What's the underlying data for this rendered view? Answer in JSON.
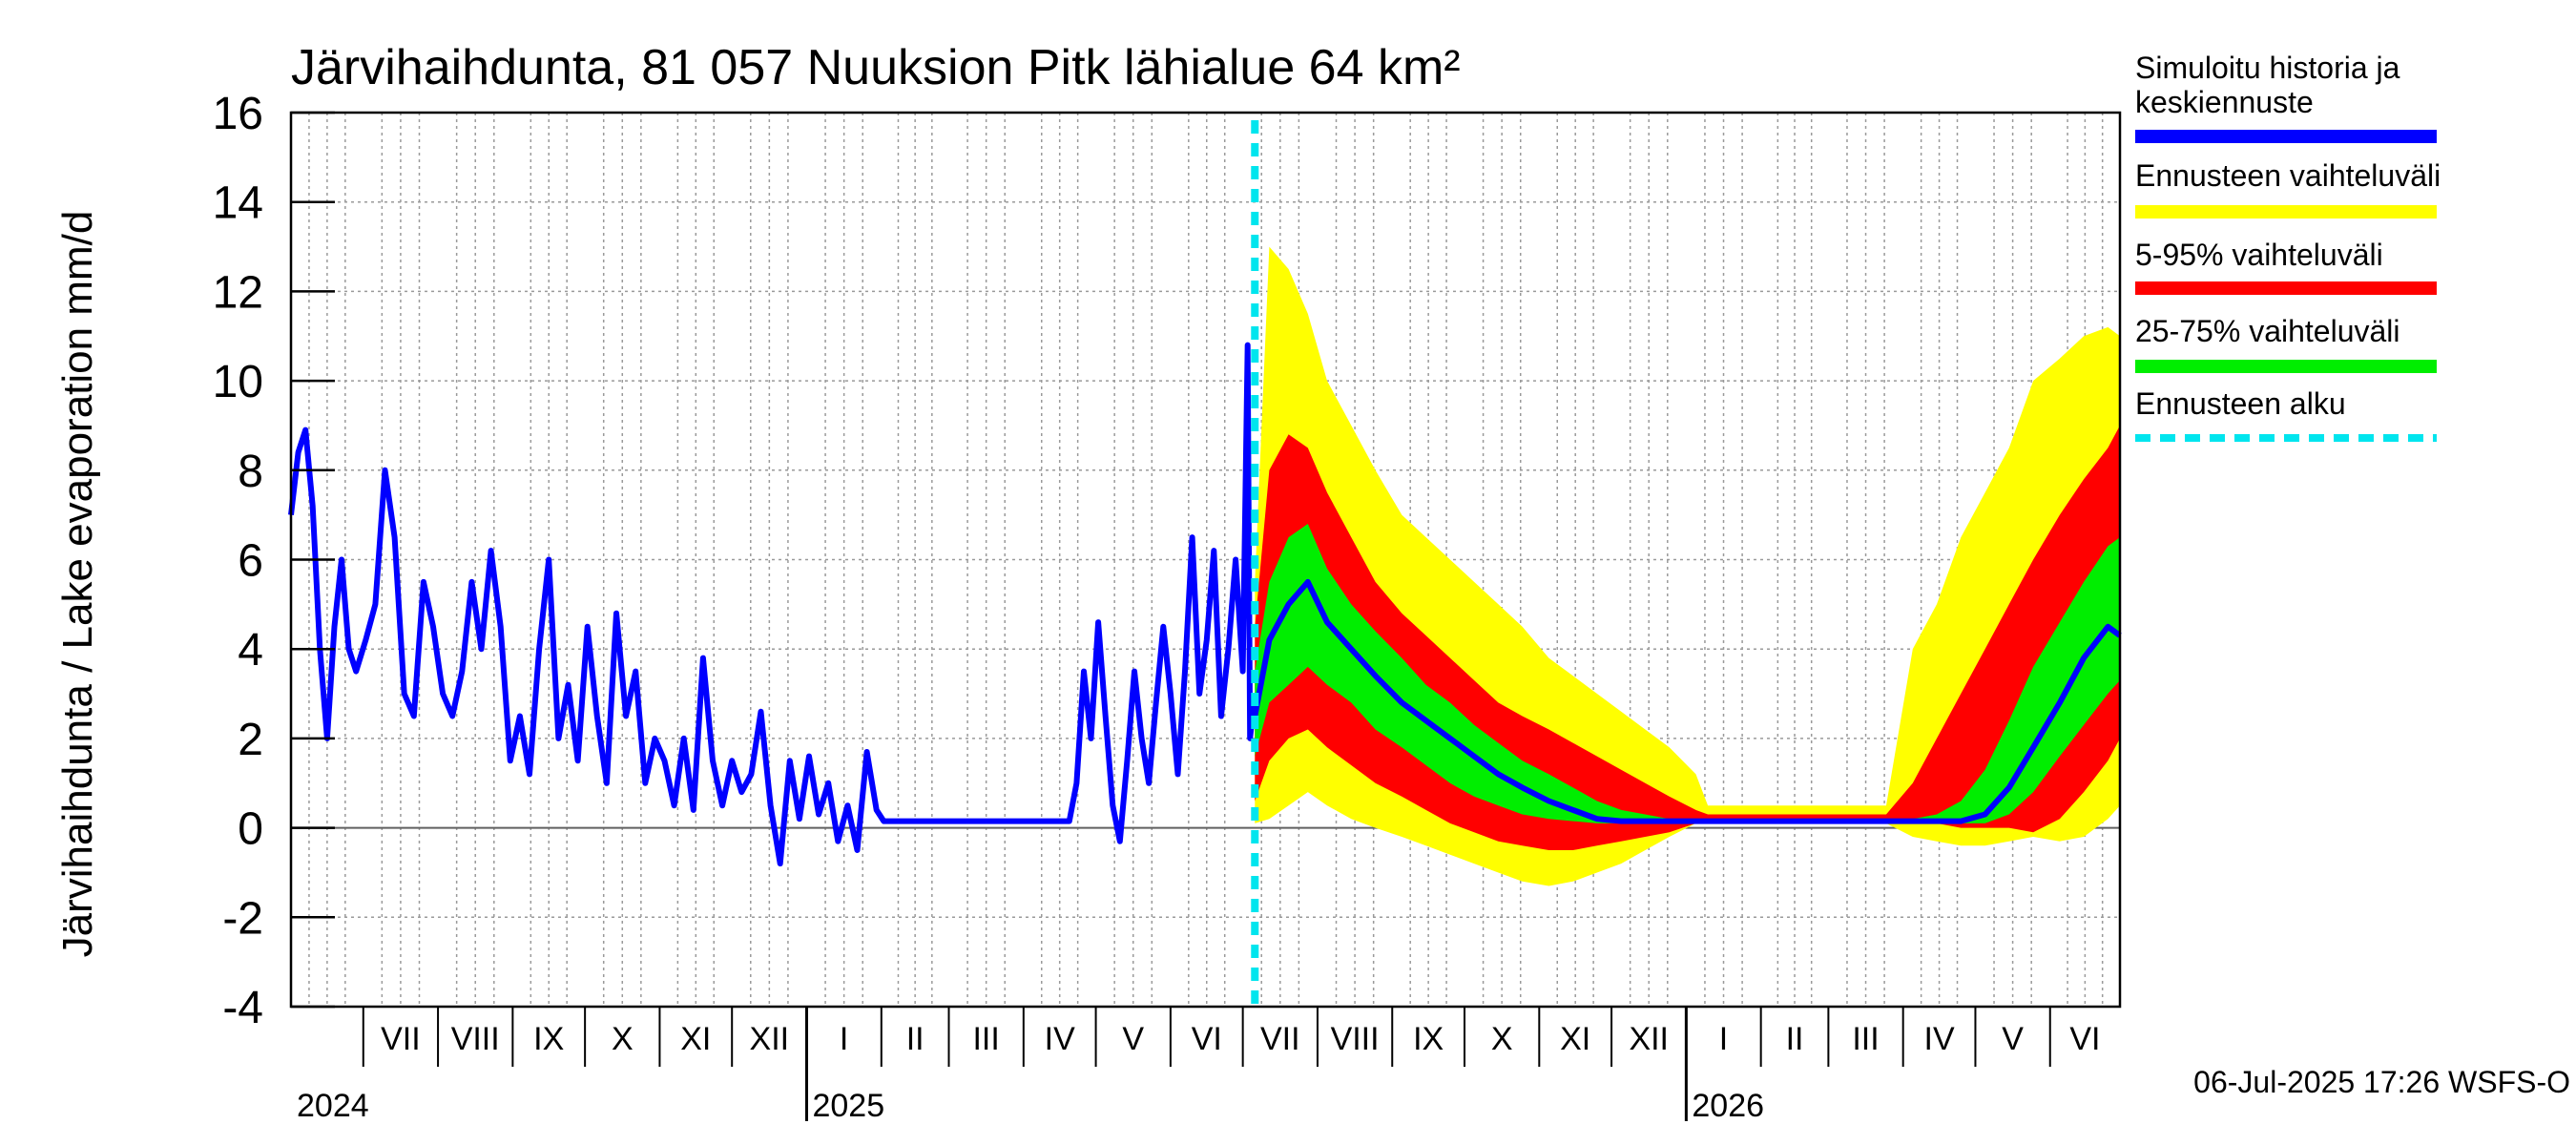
{
  "chart_data": {
    "type": "area",
    "title": "Järvihaihdunta, 81 057 Nuuksion Pitk lähialue 64 km²",
    "ylabel": "Järvihaihdunta / Lake evaporation   mm/d",
    "ylim": [
      -4,
      16
    ],
    "yticks": [
      -4,
      -2,
      0,
      2,
      4,
      6,
      8,
      10,
      12,
      14,
      16
    ],
    "x_range": [
      "2024-06-01",
      "2026-06-30"
    ],
    "grid": true,
    "legend_position": "right",
    "month_labels": [
      "VII",
      "VIII",
      "IX",
      "X",
      "XI",
      "XII",
      "I",
      "II",
      "III",
      "IV",
      "V",
      "VI",
      "VII",
      "VIII",
      "IX",
      "X",
      "XI",
      "XII",
      "I",
      "II",
      "III",
      "IV",
      "V",
      "VI"
    ],
    "year_labels": [
      "2024",
      "2025",
      "2026"
    ],
    "forecast_start": "2025-07-06",
    "footer": "06-Jul-2025 17:26 WSFS-O",
    "legend": [
      {
        "label_lines": [
          "Simuloitu historia ja",
          "keskiennuste"
        ],
        "color": "#0000ff",
        "style": "solid"
      },
      {
        "label_lines": [
          "Ennusteen vaihteluväli"
        ],
        "color": "#ffff00",
        "style": "solid"
      },
      {
        "label_lines": [
          "5-95% vaihteluväli"
        ],
        "color": "#ff0000",
        "style": "solid"
      },
      {
        "label_lines": [
          "25-75% vaihteluväli"
        ],
        "color": "#00ee00",
        "style": "solid"
      },
      {
        "label_lines": [
          "Ennusteen alku"
        ],
        "color": "#00e5ee",
        "style": "dashed"
      }
    ],
    "history": [
      [
        "2024-06-01",
        7.0
      ],
      [
        "2024-06-04",
        8.4
      ],
      [
        "2024-06-07",
        8.9
      ],
      [
        "2024-06-10",
        7.2
      ],
      [
        "2024-06-13",
        4.0
      ],
      [
        "2024-06-16",
        2.0
      ],
      [
        "2024-06-19",
        4.5
      ],
      [
        "2024-06-22",
        6.0
      ],
      [
        "2024-06-25",
        4.0
      ],
      [
        "2024-06-28",
        3.5
      ],
      [
        "2024-07-02",
        4.2
      ],
      [
        "2024-07-06",
        5.0
      ],
      [
        "2024-07-10",
        8.0
      ],
      [
        "2024-07-14",
        6.5
      ],
      [
        "2024-07-18",
        3.0
      ],
      [
        "2024-07-22",
        2.5
      ],
      [
        "2024-07-26",
        5.5
      ],
      [
        "2024-07-30",
        4.5
      ],
      [
        "2024-08-03",
        3.0
      ],
      [
        "2024-08-07",
        2.5
      ],
      [
        "2024-08-11",
        3.5
      ],
      [
        "2024-08-15",
        5.5
      ],
      [
        "2024-08-19",
        4.0
      ],
      [
        "2024-08-23",
        6.2
      ],
      [
        "2024-08-27",
        4.5
      ],
      [
        "2024-08-31",
        1.5
      ],
      [
        "2024-09-04",
        2.5
      ],
      [
        "2024-09-08",
        1.2
      ],
      [
        "2024-09-12",
        4.0
      ],
      [
        "2024-09-16",
        6.0
      ],
      [
        "2024-09-20",
        2.0
      ],
      [
        "2024-09-24",
        3.2
      ],
      [
        "2024-09-28",
        1.5
      ],
      [
        "2024-10-02",
        4.5
      ],
      [
        "2024-10-06",
        2.5
      ],
      [
        "2024-10-10",
        1.0
      ],
      [
        "2024-10-14",
        4.8
      ],
      [
        "2024-10-18",
        2.5
      ],
      [
        "2024-10-22",
        3.5
      ],
      [
        "2024-10-26",
        1.0
      ],
      [
        "2024-10-30",
        2.0
      ],
      [
        "2024-11-03",
        1.5
      ],
      [
        "2024-11-07",
        0.5
      ],
      [
        "2024-11-11",
        2.0
      ],
      [
        "2024-11-15",
        0.4
      ],
      [
        "2024-11-19",
        3.8
      ],
      [
        "2024-11-23",
        1.5
      ],
      [
        "2024-11-27",
        0.5
      ],
      [
        "2024-12-01",
        1.5
      ],
      [
        "2024-12-05",
        0.8
      ],
      [
        "2024-12-09",
        1.2
      ],
      [
        "2024-12-13",
        2.6
      ],
      [
        "2024-12-17",
        0.5
      ],
      [
        "2024-12-21",
        -0.8
      ],
      [
        "2024-12-25",
        1.5
      ],
      [
        "2024-12-29",
        0.2
      ],
      [
        "2025-01-02",
        1.6
      ],
      [
        "2025-01-06",
        0.3
      ],
      [
        "2025-01-10",
        1.0
      ],
      [
        "2025-01-14",
        -0.3
      ],
      [
        "2025-01-18",
        0.5
      ],
      [
        "2025-01-22",
        -0.5
      ],
      [
        "2025-01-26",
        1.7
      ],
      [
        "2025-01-30",
        0.4
      ],
      [
        "2025-02-02",
        0.15
      ],
      [
        "2025-04-20",
        0.15
      ],
      [
        "2025-04-23",
        1.0
      ],
      [
        "2025-04-26",
        3.5
      ],
      [
        "2025-04-29",
        2.0
      ],
      [
        "2025-05-02",
        4.6
      ],
      [
        "2025-05-05",
        2.5
      ],
      [
        "2025-05-08",
        0.5
      ],
      [
        "2025-05-11",
        -0.3
      ],
      [
        "2025-05-14",
        1.5
      ],
      [
        "2025-05-17",
        3.5
      ],
      [
        "2025-05-20",
        2.0
      ],
      [
        "2025-05-23",
        1.0
      ],
      [
        "2025-05-26",
        2.8
      ],
      [
        "2025-05-29",
        4.5
      ],
      [
        "2025-06-01",
        3.0
      ],
      [
        "2025-06-04",
        1.2
      ],
      [
        "2025-06-07",
        3.5
      ],
      [
        "2025-06-10",
        6.5
      ],
      [
        "2025-06-13",
        3.0
      ],
      [
        "2025-06-16",
        4.2
      ],
      [
        "2025-06-19",
        6.2
      ],
      [
        "2025-06-22",
        2.5
      ],
      [
        "2025-06-25",
        4.0
      ],
      [
        "2025-06-28",
        6.0
      ],
      [
        "2025-07-01",
        3.5
      ],
      [
        "2025-07-03",
        10.8
      ],
      [
        "2025-07-04",
        2.0
      ],
      [
        "2025-07-06",
        3.0
      ]
    ],
    "forecast_dates": [
      "2025-07-06",
      "2025-07-12",
      "2025-07-20",
      "2025-07-28",
      "2025-08-05",
      "2025-08-15",
      "2025-08-25",
      "2025-09-05",
      "2025-09-15",
      "2025-09-25",
      "2025-10-05",
      "2025-10-15",
      "2025-10-25",
      "2025-11-05",
      "2025-11-15",
      "2025-11-25",
      "2025-12-05",
      "2025-12-15",
      "2025-12-25",
      "2026-01-05",
      "2026-01-10",
      "2026-03-25",
      "2026-04-05",
      "2026-04-15",
      "2026-04-25",
      "2026-05-05",
      "2026-05-15",
      "2026-05-25",
      "2026-06-05",
      "2026-06-15",
      "2026-06-25",
      "2026-06-30"
    ],
    "forecast_min": [
      0.1,
      0.2,
      0.5,
      0.8,
      0.5,
      0.2,
      0.0,
      -0.2,
      -0.4,
      -0.6,
      -0.8,
      -1.0,
      -1.2,
      -1.3,
      -1.2,
      -1.0,
      -0.8,
      -0.5,
      -0.2,
      0.1,
      0.1,
      0.1,
      -0.2,
      -0.3,
      -0.4,
      -0.4,
      -0.3,
      -0.2,
      -0.3,
      -0.2,
      0.2,
      0.5
    ],
    "forecast_p05": [
      0.6,
      1.5,
      2.0,
      2.2,
      1.8,
      1.4,
      1.0,
      0.7,
      0.4,
      0.1,
      -0.1,
      -0.3,
      -0.4,
      -0.5,
      -0.5,
      -0.4,
      -0.3,
      -0.2,
      -0.1,
      0.1,
      0.1,
      0.1,
      0.1,
      0.1,
      0.0,
      0.0,
      0.0,
      -0.1,
      0.2,
      0.8,
      1.5,
      2.0
    ],
    "forecast_p25": [
      1.6,
      2.8,
      3.2,
      3.6,
      3.2,
      2.8,
      2.2,
      1.8,
      1.4,
      1.0,
      0.7,
      0.5,
      0.3,
      0.2,
      0.15,
      0.1,
      0.1,
      0.1,
      0.1,
      0.1,
      0.1,
      0.1,
      0.1,
      0.1,
      0.1,
      0.1,
      0.3,
      0.8,
      1.6,
      2.3,
      3.0,
      3.3
    ],
    "forecast_median": [
      2.5,
      4.2,
      5.0,
      5.5,
      4.6,
      4.0,
      3.4,
      2.8,
      2.4,
      2.0,
      1.6,
      1.2,
      0.9,
      0.6,
      0.4,
      0.2,
      0.15,
      0.15,
      0.15,
      0.15,
      0.15,
      0.15,
      0.15,
      0.15,
      0.15,
      0.3,
      0.9,
      1.8,
      2.8,
      3.8,
      4.5,
      4.3
    ],
    "forecast_p75": [
      3.5,
      5.5,
      6.5,
      6.8,
      5.8,
      5.0,
      4.4,
      3.8,
      3.2,
      2.8,
      2.3,
      1.9,
      1.5,
      1.2,
      0.9,
      0.6,
      0.4,
      0.3,
      0.2,
      0.15,
      0.15,
      0.15,
      0.2,
      0.3,
      0.6,
      1.3,
      2.4,
      3.6,
      4.6,
      5.5,
      6.3,
      6.5
    ],
    "forecast_p95": [
      4.5,
      8.0,
      8.8,
      8.5,
      7.5,
      6.5,
      5.5,
      4.8,
      4.3,
      3.8,
      3.3,
      2.8,
      2.5,
      2.2,
      1.9,
      1.6,
      1.3,
      1.0,
      0.7,
      0.4,
      0.3,
      0.3,
      1.0,
      2.0,
      3.0,
      4.0,
      5.0,
      6.0,
      7.0,
      7.8,
      8.5,
      9.0
    ],
    "forecast_max": [
      5.5,
      13.0,
      12.5,
      11.5,
      10.0,
      9.0,
      8.0,
      7.0,
      6.5,
      6.0,
      5.5,
      5.0,
      4.5,
      3.8,
      3.4,
      3.0,
      2.6,
      2.2,
      1.8,
      1.2,
      0.5,
      0.5,
      4.0,
      5.0,
      6.5,
      7.5,
      8.5,
      10.0,
      10.5,
      11.0,
      11.2,
      11.0
    ]
  }
}
